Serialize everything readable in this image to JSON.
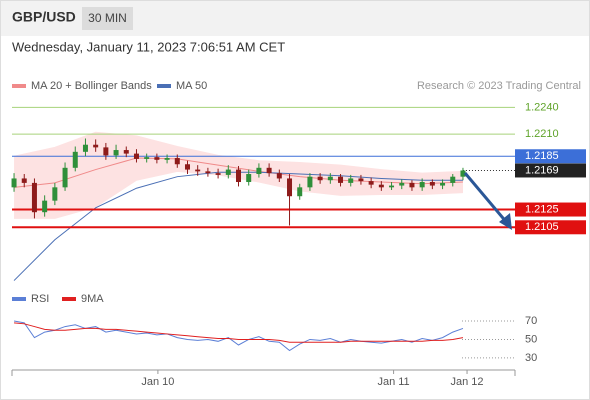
{
  "chart_data": [
    {
      "type": "candlestick",
      "title": "GBP/USD",
      "timeframe": "30 MIN",
      "subtitle": "Wednesday, January 11, 2023 7:06:51 AM CET",
      "source": "Research © 2023 Trading Central",
      "x": [
        0,
        1,
        2,
        3,
        4,
        5,
        6,
        7,
        8,
        9,
        10,
        11,
        12,
        13,
        14,
        15,
        16,
        17,
        18,
        19,
        20,
        21,
        22,
        23,
        24,
        25,
        26,
        27,
        28,
        29,
        30,
        31,
        32,
        33,
        34,
        35,
        36,
        37,
        38,
        39,
        40,
        41,
        42,
        43,
        44
      ],
      "open": [
        1.215,
        1.216,
        1.2155,
        1.2122,
        1.2135,
        1.215,
        1.2172,
        1.219,
        1.2198,
        1.2195,
        1.2186,
        1.2192,
        1.2188,
        1.2182,
        1.2184,
        1.2181,
        1.2183,
        1.2176,
        1.217,
        1.2168,
        1.2166,
        1.2164,
        1.217,
        1.2156,
        1.2165,
        1.2172,
        1.2166,
        1.216,
        1.214,
        1.215,
        1.2162,
        1.2158,
        1.2162,
        1.2155,
        1.216,
        1.2157,
        1.2153,
        1.215,
        1.2152,
        1.2155,
        1.215,
        1.2156,
        1.2152,
        1.2155,
        1.2162
      ],
      "high": [
        1.2166,
        1.2165,
        1.216,
        1.2141,
        1.2155,
        1.2178,
        1.2196,
        1.2205,
        1.2204,
        1.22,
        1.2198,
        1.2196,
        1.2193,
        1.2188,
        1.2188,
        1.2187,
        1.2187,
        1.218,
        1.2175,
        1.2172,
        1.2171,
        1.2175,
        1.2174,
        1.217,
        1.2177,
        1.2177,
        1.217,
        1.2165,
        1.2154,
        1.2166,
        1.2166,
        1.2166,
        1.2165,
        1.2164,
        1.2164,
        1.2161,
        1.2157,
        1.2156,
        1.2159,
        1.2158,
        1.216,
        1.2159,
        1.2159,
        1.2165,
        1.2172
      ],
      "low": [
        1.2145,
        1.215,
        1.2115,
        1.2117,
        1.213,
        1.2146,
        1.2168,
        1.2185,
        1.219,
        1.2181,
        1.2182,
        1.2184,
        1.2178,
        1.2178,
        1.2177,
        1.2177,
        1.2172,
        1.2165,
        1.2163,
        1.2162,
        1.216,
        1.216,
        1.2151,
        1.2152,
        1.2161,
        1.2162,
        1.2156,
        1.2107,
        1.2136,
        1.2146,
        1.2154,
        1.2154,
        1.2151,
        1.2151,
        1.2153,
        1.2149,
        1.2146,
        1.2147,
        1.2148,
        1.2146,
        1.2146,
        1.2148,
        1.2148,
        1.2151,
        1.2158
      ],
      "close": [
        1.216,
        1.2155,
        1.2122,
        1.2135,
        1.215,
        1.2172,
        1.219,
        1.2198,
        1.2195,
        1.2186,
        1.2192,
        1.2188,
        1.2182,
        1.2184,
        1.2181,
        1.2183,
        1.2176,
        1.217,
        1.2168,
        1.2166,
        1.2164,
        1.217,
        1.2156,
        1.2165,
        1.2172,
        1.2166,
        1.216,
        1.214,
        1.215,
        1.2162,
        1.2158,
        1.2162,
        1.2155,
        1.216,
        1.2157,
        1.2153,
        1.215,
        1.2152,
        1.2155,
        1.215,
        1.2156,
        1.2152,
        1.2155,
        1.2162,
        1.2169
      ],
      "up_color": "#2f8f3a",
      "down_color": "#8e1b1b",
      "overlays": [
        {
          "name": "MA 20 + Bollinger Bands",
          "color": "#f08a8a",
          "band_color": "#fde2e2",
          "x": [
            0,
            4,
            8,
            12,
            16,
            20,
            24,
            28,
            32,
            36,
            40,
            44
          ],
          "values": [
            1.215,
            1.2155,
            1.217,
            1.2183,
            1.2182,
            1.2175,
            1.2168,
            1.2162,
            1.2158,
            1.2156,
            1.2154,
            1.2156
          ],
          "upper": [
            1.2185,
            1.2195,
            1.2212,
            1.2208,
            1.2196,
            1.2186,
            1.218,
            1.2178,
            1.2175,
            1.217,
            1.2166,
            1.2168
          ],
          "lower": [
            1.2115,
            1.2115,
            1.2128,
            1.2158,
            1.2168,
            1.2164,
            1.2156,
            1.2146,
            1.2141,
            1.2142,
            1.2142,
            1.2144
          ]
        },
        {
          "name": "MA 50",
          "color": "#4a6fb5",
          "x": [
            0,
            4,
            8,
            12,
            16,
            20,
            24,
            28,
            32,
            36,
            40,
            44
          ],
          "values": [
            1.2045,
            1.2091,
            1.2127,
            1.2149,
            1.2162,
            1.2167,
            1.2167,
            1.2165,
            1.2163,
            1.216,
            1.2158,
            1.2158
          ]
        }
      ],
      "levels": [
        {
          "value": 1.224,
          "label": "1.2240",
          "color": "#5fa32a",
          "style": "thin"
        },
        {
          "value": 1.221,
          "label": "1.2210",
          "color": "#5fa32a",
          "style": "thin"
        },
        {
          "value": 1.2185,
          "label": "1.2185",
          "color": "#3c6fd8",
          "style": "line"
        },
        {
          "value": 1.2169,
          "label": "1.2169",
          "color": "#222222",
          "style": "current"
        },
        {
          "value": 1.2125,
          "label": "1.2125",
          "color": "#e01010",
          "style": "thick"
        },
        {
          "value": 1.2105,
          "label": "1.2105",
          "color": "#e01010",
          "style": "thick"
        }
      ],
      "xlim": [
        -0.2,
        49.1
      ],
      "xticks": [
        {
          "value": 14.1,
          "label": "Jan 10"
        },
        {
          "value": 37.2,
          "label": "Jan 11"
        },
        {
          "value": 44.4,
          "label": "Jan 12"
        }
      ],
      "ylim": [
        1.204,
        1.2254
      ]
    },
    {
      "type": "line",
      "series": [
        {
          "name": "RSI",
          "color": "#5b7fd6",
          "values": [
            70,
            68,
            52,
            58,
            60,
            64,
            66,
            62,
            64,
            58,
            60,
            58,
            56,
            57,
            55,
            56,
            52,
            50,
            49,
            50,
            48,
            52,
            44,
            50,
            53,
            48,
            47,
            38,
            45,
            50,
            49,
            51,
            47,
            50,
            48,
            47,
            46,
            48,
            50,
            47,
            51,
            49,
            52,
            58,
            62
          ]
        },
        {
          "name": "9MA",
          "color": "#e02020",
          "values": [
            68,
            67,
            64,
            61,
            60,
            60,
            61,
            62,
            62,
            61,
            61,
            60,
            59,
            58,
            57,
            56,
            55,
            54,
            53,
            52,
            51,
            51,
            50,
            50,
            50,
            50,
            49,
            47,
            47,
            47,
            47,
            47,
            47,
            48,
            48,
            48,
            48,
            48,
            48,
            48,
            48,
            49,
            49,
            50,
            52
          ]
        }
      ],
      "ylim": [
        19,
        82
      ],
      "yticks": [
        70,
        50,
        30
      ]
    }
  ]
}
